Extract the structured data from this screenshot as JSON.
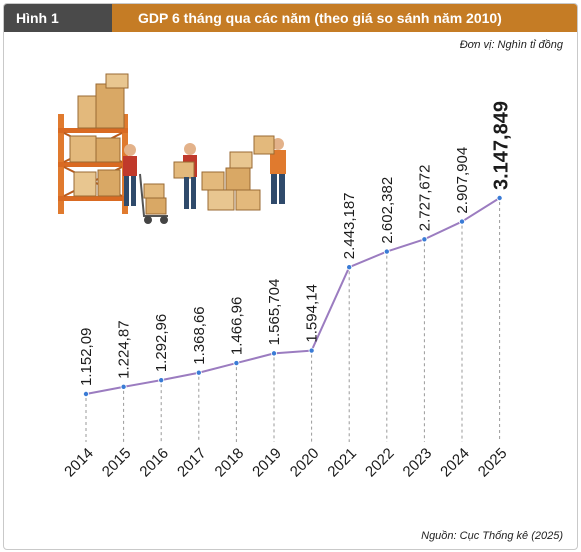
{
  "header": {
    "figure_label": "Hình 1",
    "title": "GDP 6 tháng qua các năm (theo giá so sánh năm 2010)"
  },
  "unit_note": "Đơn vị: Nghìn tỉ đồng",
  "source_note": "Nguồn: Cục Thống kê (2025)",
  "colors": {
    "label_bg": "#4a4a4a",
    "title_bg": "#c57c25",
    "line": "#9b7cc0",
    "shelf": "#e07a2e",
    "box": "#e3b97c"
  },
  "icons": [
    "warehouse-shelf-illustration",
    "workers-carrying-boxes-illustration",
    "hand-truck-icon"
  ],
  "chart_data": {
    "type": "line",
    "title": "GDP 6 tháng qua các năm (theo giá so sánh năm 2010)",
    "x": [
      "2014",
      "2015",
      "2016",
      "2017",
      "2018",
      "2019",
      "2020",
      "2021",
      "2022",
      "2023",
      "2024",
      "2025"
    ],
    "series": [
      {
        "values": [
          1152.09,
          1224.87,
          1292.96,
          1368.66,
          1466.96,
          1565.704,
          1594.14,
          2443.187,
          2602.382,
          2727.672,
          2907.904,
          3147.849
        ]
      }
    ],
    "data_labels": [
      "1.152,09",
      "1.224,87",
      "1.292,96",
      "1.368,66",
      "1.466,96",
      "1.565,704",
      "1.594,14",
      "2.443,187",
      "2.602,382",
      "2.727,672",
      "2.907,904",
      "3.147,849"
    ],
    "highlight_last": true,
    "grid": false,
    "xlabel": "",
    "ylabel": ""
  }
}
